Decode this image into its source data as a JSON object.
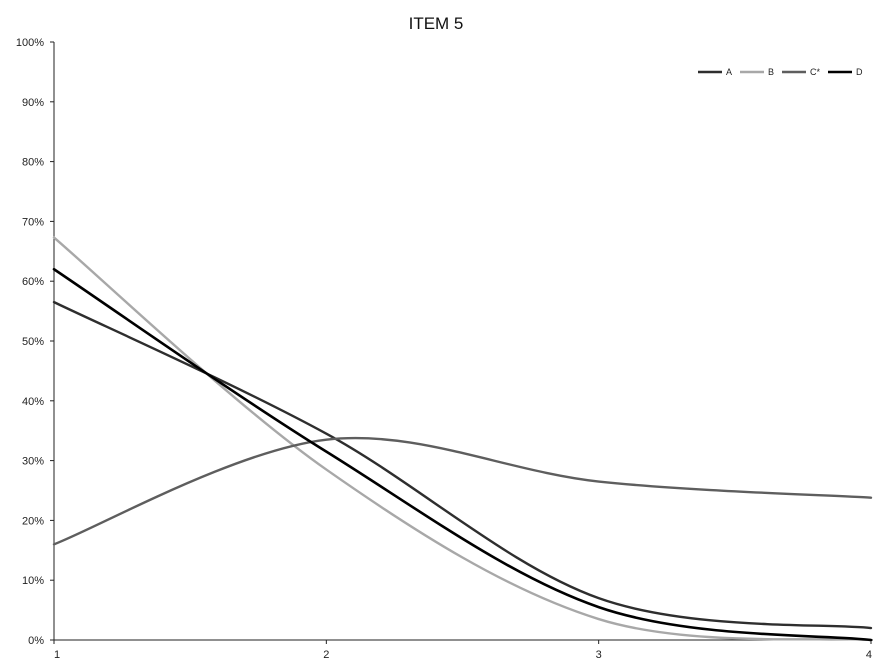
{
  "chart_data": {
    "type": "line",
    "title": "ITEM 5",
    "xlabel": "",
    "ylabel": "",
    "x": [
      1,
      2,
      3,
      4
    ],
    "x_tick_labels": [
      "1",
      "2",
      "3",
      "4"
    ],
    "ylim": [
      0,
      1
    ],
    "y_tick_labels": [
      "0%",
      "10%",
      "20%",
      "30%",
      "40%",
      "50%",
      "60%",
      "70%",
      "80%",
      "90%",
      "100%"
    ],
    "grid": false,
    "legend_position": "top-right",
    "smooth": true,
    "series": [
      {
        "name": "A",
        "color": "#2e2e2e",
        "values": [
          0.565,
          0.345,
          0.07,
          0.02
        ]
      },
      {
        "name": "B",
        "color": "#a8a8a8",
        "values": [
          0.673,
          0.285,
          0.035,
          0.0
        ]
      },
      {
        "name": "C*",
        "color": "#5e5e5e",
        "values": [
          0.16,
          0.335,
          0.265,
          0.238
        ]
      },
      {
        "name": "D",
        "color": "#000000",
        "values": [
          0.62,
          0.315,
          0.055,
          0.0
        ]
      }
    ]
  }
}
